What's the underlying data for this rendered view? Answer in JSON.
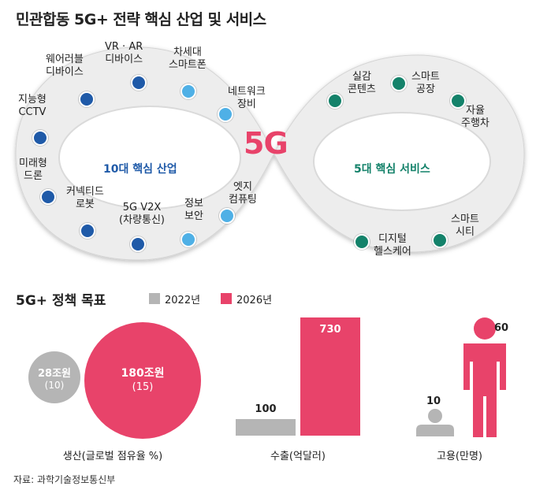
{
  "title": "민관합동 5G+ 전략 핵심 산업 및 서비스",
  "diagram": {
    "center": "5G",
    "left_loop_label": "10대 핵심 산업",
    "right_loop_label": "5대 핵심 서비스",
    "industries": [
      "지능형\nCCTV",
      "웨어러블\n디바이스",
      "VR · AR\n디바이스",
      "차세대\n스마트폰",
      "네트워크\n장비",
      "미래형\n드론",
      "커넥티드\n로봇",
      "5G V2X\n(차량통신)",
      "정보\n보안",
      "엣지\n컴퓨팅"
    ],
    "services": [
      "실감\n콘텐츠",
      "스마트\n공장",
      "자율\n주행차",
      "디지털\n헬스케어",
      "스마트\n시티"
    ],
    "colors": {
      "dark_blue": "#1f5aa8",
      "light_blue": "#4fb0e6",
      "green": "#14826a",
      "title_5g": "#e8436a"
    }
  },
  "section_title": "5G+ 정책 목표",
  "legend": [
    {
      "label": "2022년",
      "color": "#b5b5b5"
    },
    {
      "label": "2026년",
      "color": "#e8436a"
    }
  ],
  "chart_data": [
    {
      "type": "bubble",
      "category": "생산(글로벌 점유율 %)",
      "unit": "조원",
      "values": [
        {
          "year": "2022년",
          "value": 28,
          "label": "28조원",
          "share": "(10)"
        },
        {
          "year": "2026년",
          "value": 180,
          "label": "180조원",
          "share": "(15)"
        }
      ]
    },
    {
      "type": "bar",
      "category": "수출(억달러)",
      "values": [
        {
          "year": "2022년",
          "value": 100
        },
        {
          "year": "2026년",
          "value": 730
        }
      ]
    },
    {
      "type": "pictogram",
      "category": "고용(만명)",
      "values": [
        {
          "year": "2022년",
          "value": 10
        },
        {
          "year": "2026년",
          "value": 60
        }
      ]
    }
  ],
  "source": "자료: 과학기술정보통신부"
}
